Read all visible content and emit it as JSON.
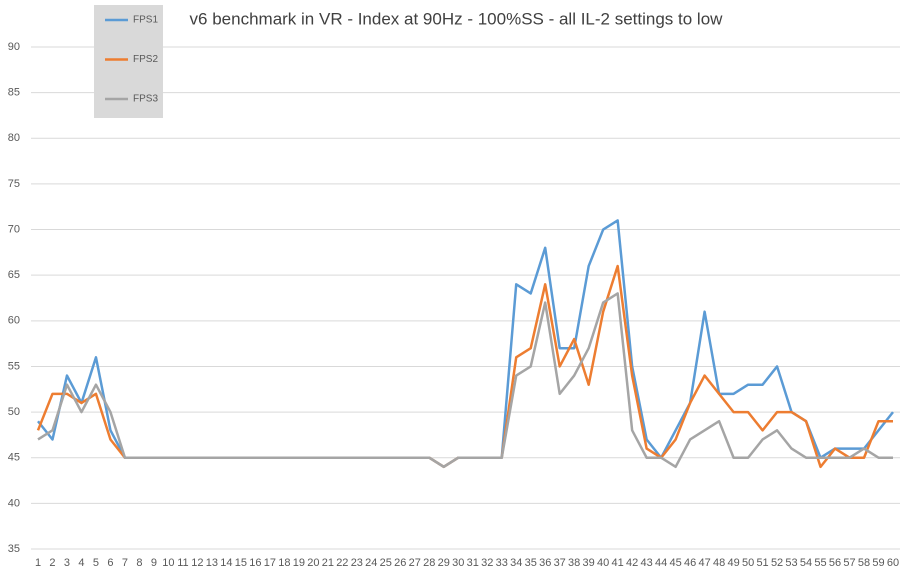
{
  "chart_data": {
    "type": "line",
    "title": "v6 benchmark in VR - Index at 90Hz - 100%SS - all IL-2 settings to low",
    "categories": [
      1,
      2,
      3,
      4,
      5,
      6,
      7,
      8,
      9,
      10,
      11,
      12,
      13,
      14,
      15,
      16,
      17,
      18,
      19,
      20,
      21,
      22,
      23,
      24,
      25,
      26,
      27,
      28,
      29,
      30,
      31,
      32,
      33,
      34,
      35,
      36,
      37,
      38,
      39,
      40,
      41,
      42,
      43,
      44,
      45,
      46,
      47,
      48,
      49,
      50,
      51,
      52,
      53,
      54,
      55,
      56,
      57,
      58,
      59,
      60
    ],
    "series": [
      {
        "name": "FPS1",
        "color": "#5b9bd5",
        "values": [
          49,
          47,
          54,
          51,
          56,
          48,
          45,
          45,
          45,
          45,
          45,
          45,
          45,
          45,
          45,
          45,
          45,
          45,
          45,
          45,
          45,
          45,
          45,
          45,
          45,
          45,
          45,
          45,
          44,
          45,
          45,
          45,
          45,
          64,
          63,
          68,
          57,
          57,
          66,
          70,
          71,
          55,
          47,
          45,
          48,
          51,
          61,
          52,
          52,
          53,
          53,
          55,
          50,
          49,
          45,
          46,
          46,
          46,
          48,
          50
        ]
      },
      {
        "name": "FPS2",
        "color": "#ed7d31",
        "values": [
          48,
          52,
          52,
          51,
          52,
          47,
          45,
          45,
          45,
          45,
          45,
          45,
          45,
          45,
          45,
          45,
          45,
          45,
          45,
          45,
          45,
          45,
          45,
          45,
          45,
          45,
          45,
          45,
          44,
          45,
          45,
          45,
          45,
          56,
          57,
          64,
          55,
          58,
          53,
          61,
          66,
          54,
          46,
          45,
          47,
          51,
          54,
          52,
          50,
          50,
          48,
          50,
          50,
          49,
          44,
          46,
          45,
          45,
          49,
          49
        ]
      },
      {
        "name": "FPS3",
        "color": "#a5a5a5",
        "values": [
          47,
          48,
          53,
          50,
          53,
          50,
          45,
          45,
          45,
          45,
          45,
          45,
          45,
          45,
          45,
          45,
          45,
          45,
          45,
          45,
          45,
          45,
          45,
          45,
          45,
          45,
          45,
          45,
          44,
          45,
          45,
          45,
          45,
          54,
          55,
          62,
          52,
          54,
          57,
          62,
          63,
          48,
          45,
          45,
          44,
          47,
          48,
          49,
          45,
          45,
          47,
          48,
          46,
          45,
          45,
          45,
          45,
          46,
          45,
          45
        ]
      }
    ],
    "ylim": [
      35,
      90
    ],
    "yticks": [
      35,
      40,
      45,
      50,
      55,
      60,
      65,
      70,
      75,
      80,
      85,
      90
    ],
    "grid": true,
    "legend": "top-left"
  }
}
